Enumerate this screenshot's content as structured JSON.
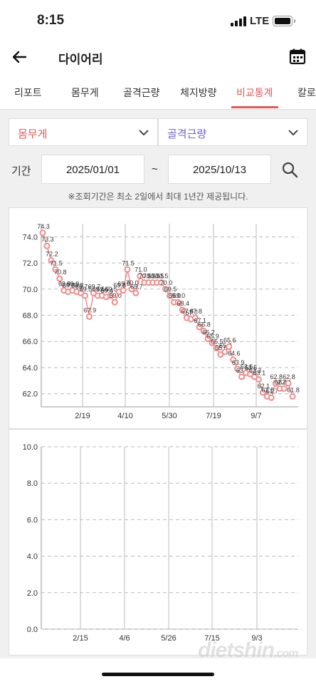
{
  "status": {
    "time": "8:15",
    "network": "LTE"
  },
  "header": {
    "title": "다이어리",
    "back_icon": "arrow-left-icon",
    "calendar_icon": "calendar-icon"
  },
  "tabs": [
    {
      "label": "리포트"
    },
    {
      "label": "몸무게"
    },
    {
      "label": "골격근량"
    },
    {
      "label": "체지방량"
    },
    {
      "label": "비교통계",
      "active": true
    },
    {
      "label": "칼로"
    }
  ],
  "compare": {
    "left_select": "몸무게",
    "right_select": "골격근량"
  },
  "period": {
    "label": "기간",
    "start": "2025/01/01",
    "separator": "~",
    "end": "2025/10/13",
    "notice": "※조회기간은 최소 2일에서 최대 1년간 제공됩니다."
  },
  "colors": {
    "accent": "#e05a5a",
    "secondary": "#6f63c4",
    "point": "#f08c8c"
  },
  "chart_data": [
    {
      "type": "line",
      "ylim": [
        61,
        75
      ],
      "yticks": [
        "74.0",
        "72.0",
        "70.0",
        "68.0",
        "66.0",
        "64.0",
        "62.0"
      ],
      "xticks": [
        "2/19",
        "4/10",
        "5/30",
        "7/19",
        "9/7"
      ],
      "values": [
        74.3,
        73.3,
        72.2,
        71.5,
        70.8,
        69.9,
        69.8,
        69.9,
        69.8,
        69.7,
        69.5,
        67.9,
        69.7,
        69.5,
        69.5,
        69.4,
        69.5,
        69.0,
        69.8,
        69.9,
        71.5,
        70.0,
        69.7,
        71.0,
        70.5,
        70.5,
        70.5,
        70.5,
        70.5,
        70.0,
        69.5,
        69.0,
        69.0,
        68.4,
        67.8,
        67.7,
        67.8,
        67.1,
        66.8,
        66.2,
        65.9,
        65.5,
        65.0,
        65.2,
        65.6,
        64.6,
        63.9,
        63.3,
        63.6,
        63.5,
        63.3,
        63.1,
        62.1,
        61.8,
        61.7,
        62.8,
        62.4,
        62.4,
        62.8,
        61.8
      ],
      "grid": true
    },
    {
      "type": "line",
      "ylim": [
        0,
        10
      ],
      "yticks": [
        "10.0",
        "8.0",
        "6.0",
        "4.0",
        "2.0",
        "0.0"
      ],
      "xticks": [
        "2/15",
        "4/6",
        "5/26",
        "7/15",
        "9/3"
      ],
      "values": [],
      "grid": true
    }
  ],
  "watermark": {
    "main": "dietshin",
    "suffix": ".com"
  }
}
